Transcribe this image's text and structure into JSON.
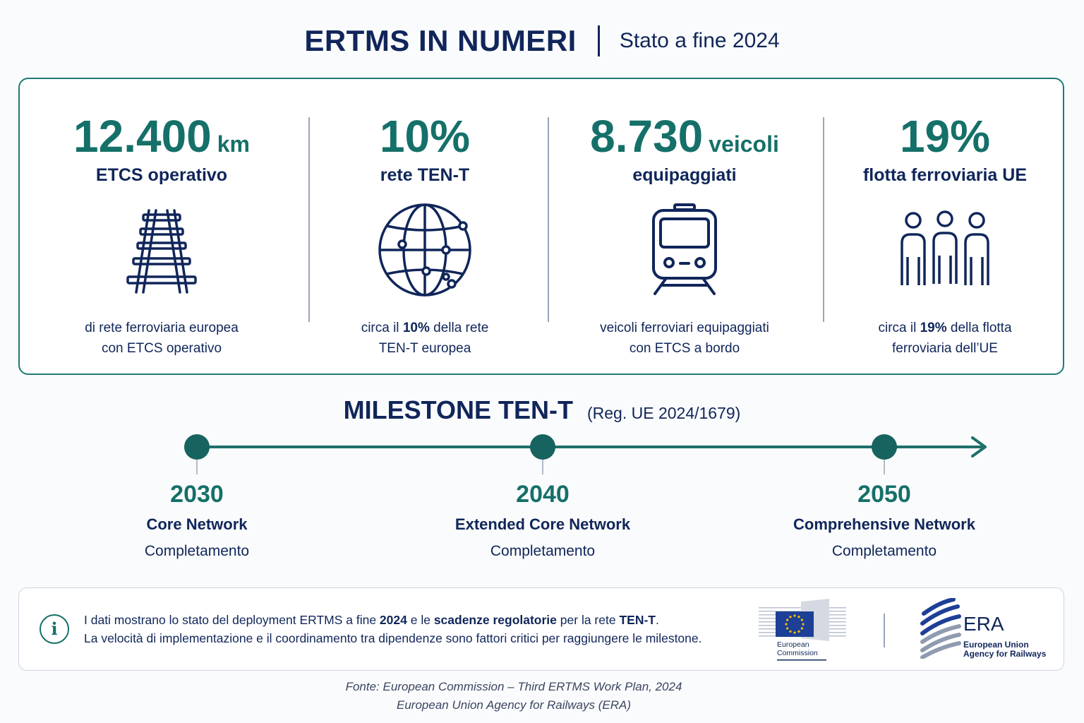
{
  "header": {
    "title": "ERTMS IN NUMERI",
    "subtitle": "Stato a fine 2024"
  },
  "stats": [
    {
      "value": "12.400",
      "unit": "km",
      "label": "ETCS operativo",
      "icon": "railway-track-icon",
      "desc_line1": "di rete ferroviaria europea",
      "desc_line2": "con ETCS operativo"
    },
    {
      "value": "10%",
      "unit": "",
      "label": "rete TEN-T",
      "icon": "globe-network-icon",
      "desc_pre": "circa il ",
      "desc_bold": "10%",
      "desc_post": " della rete",
      "desc_line2": "TEN-T europea"
    },
    {
      "value": "8.730",
      "unit": "veicoli",
      "label": "equipaggiati",
      "icon": "train-icon",
      "desc_line1": "veicoli ferroviari equipaggiati",
      "desc_line2": "con ETCS a bordo"
    },
    {
      "value": "19%",
      "unit": "",
      "label": "flotta ferroviaria UE",
      "icon": "people-icon",
      "desc_pre": "circa il ",
      "desc_bold": "19%",
      "desc_post": " della flotta",
      "desc_line2": "ferroviaria dell’UE"
    }
  ],
  "milestones": {
    "title": "MILESTONE TEN-T",
    "subtitle": "(Reg. UE 2024/1679)",
    "items": [
      {
        "year": "2030",
        "name": "Core Network",
        "status": "Completamento"
      },
      {
        "year": "2040",
        "name": "Extended Core Network",
        "status": "Completamento"
      },
      {
        "year": "2050",
        "name": "Comprehensive Network",
        "status": "Completamento"
      }
    ]
  },
  "info": {
    "icon": "info-icon",
    "l1_a": "I dati mostrano lo stato del deployment ERTMS a fine ",
    "l1_b": "2024",
    "l1_c": " e le ",
    "l1_d": "scadenze regolatorie",
    "l1_e": " per la rete ",
    "l1_f": "TEN-T",
    "l1_g": ".",
    "l2": "La velocità di implementazione e il coordinamento tra dipendenze sono fattori critici per raggiungere le milestone."
  },
  "logos": {
    "ec_line1": "European",
    "ec_line2": "Commission",
    "era_name": "ERA",
    "era_sub1": "European Union",
    "era_sub2": "Agency for Railways"
  },
  "source": {
    "line1": "Fonte: European Commission – Third ERTMS Work Plan, 2024",
    "line2": "European Union Agency for Railways (ERA)"
  },
  "colors": {
    "navy": "#10265a",
    "teal": "#157069",
    "border_teal": "#1e7a76",
    "eu_blue": "#1d3f96",
    "eu_yellow": "#f4c20d"
  }
}
